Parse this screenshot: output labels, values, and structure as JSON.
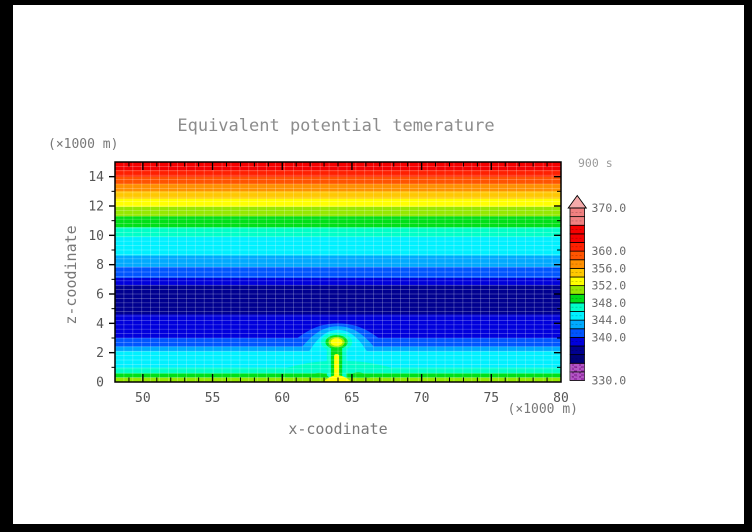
{
  "figure": {
    "title": "Equivalent potential temerature",
    "time_label": "900 s",
    "x_axis": {
      "label": "x-coodinate",
      "unit": "(×1000 m)"
    },
    "z_axis": {
      "label": "z-coodinate",
      "unit": "(×1000 m)"
    }
  },
  "chart_data": {
    "type": "heatmap",
    "subtype": "filled-contour-cross-section",
    "title": "Equivalent potential temerature",
    "time": "900 s",
    "xlabel": "x-coodinate (×1000 m)",
    "ylabel": "z-coodinate (×1000 m)",
    "xlim": [
      48,
      80
    ],
    "ylim": [
      0,
      15
    ],
    "x_major_ticks": [
      50,
      55,
      60,
      65,
      70,
      75,
      80
    ],
    "x_minor_step": 1,
    "z_major_ticks": [
      0,
      2,
      4,
      6,
      8,
      10,
      12,
      14
    ],
    "z_minor_step": 1,
    "grid": {
      "on": true,
      "x_step": 0.64,
      "z_step": 0.3,
      "color": "rgba(255,255,255,0.30)"
    },
    "contour_interval": 2,
    "value_range": [
      330,
      370
    ],
    "colorbar": {
      "position": "right",
      "labels": [
        {
          "value": 370,
          "text": "370.0"
        },
        {
          "value": 360,
          "text": "360.0"
        },
        {
          "value": 356,
          "text": "356.0"
        },
        {
          "value": 352,
          "text": "352.0"
        },
        {
          "value": 348,
          "text": "348.0"
        },
        {
          "value": 344,
          "text": "344.0"
        },
        {
          "value": 340,
          "text": "340.0"
        },
        {
          "value": 330,
          "text": "330.0"
        }
      ],
      "segment_colors_bottom_to_top": [
        "#9933AA",
        "#9933AA",
        "#000078",
        "#000090",
        "#0000DC",
        "#0055FF",
        "#00AAFF",
        "#00F0FF",
        "#00FFC8",
        "#00E018",
        "#96E800",
        "#FFFF00",
        "#FFC800",
        "#FF9000",
        "#FF5400",
        "#FF2000",
        "#F50000",
        "#F50000",
        "#F08080",
        "#F08080"
      ],
      "hatched_segments": [
        0,
        1
      ],
      "overflow_arrow_color": "#F5AAAA"
    },
    "background_layers": [
      {
        "z0": 0.0,
        "z1": 0.3,
        "level": 350,
        "color": "#96E800"
      },
      {
        "z0": 0.3,
        "z1": 0.58,
        "level": 348,
        "color": "#00E018"
      },
      {
        "z0": 0.58,
        "z1": 0.98,
        "level": 346,
        "color": "#00FFC8"
      },
      {
        "z0": 0.98,
        "z1": 2.1,
        "level": 344,
        "color": "#00F0FF"
      },
      {
        "z0": 2.1,
        "z1": 2.42,
        "level": 342,
        "color": "#00AAFF"
      },
      {
        "z0": 2.42,
        "z1": 3.0,
        "level": 340,
        "color": "#0055FF"
      },
      {
        "z0": 3.0,
        "z1": 4.6,
        "level": 338,
        "color": "#0000DC"
      },
      {
        "z0": 4.6,
        "z1": 6.6,
        "level": 336,
        "color": "#000090"
      },
      {
        "z0": 6.6,
        "z1": 7.1,
        "level": 338,
        "color": "#0000DC"
      },
      {
        "z0": 7.1,
        "z1": 7.85,
        "level": 340,
        "color": "#0055FF"
      },
      {
        "z0": 7.85,
        "z1": 8.62,
        "level": 342,
        "color": "#00AAFF"
      },
      {
        "z0": 8.62,
        "z1": 9.9,
        "level": 344,
        "color": "#00F0FF"
      },
      {
        "z0": 9.9,
        "z1": 10.55,
        "level": 346,
        "color": "#00FFC8"
      },
      {
        "z0": 10.55,
        "z1": 11.3,
        "level": 348,
        "color": "#00E018"
      },
      {
        "z0": 11.3,
        "z1": 11.95,
        "level": 350,
        "color": "#96E800"
      },
      {
        "z0": 11.95,
        "z1": 12.5,
        "level": 352,
        "color": "#FFFF00"
      },
      {
        "z0": 12.5,
        "z1": 13.0,
        "level": 354,
        "color": "#FFC800"
      },
      {
        "z0": 13.0,
        "z1": 13.5,
        "level": 356,
        "color": "#FF9000"
      },
      {
        "z0": 13.5,
        "z1": 14.0,
        "level": 358,
        "color": "#FF5400"
      },
      {
        "z0": 14.0,
        "z1": 14.45,
        "level": 360,
        "color": "#FF2000"
      },
      {
        "z0": 14.45,
        "z1": 15.0,
        "level": 362,
        "color": "#F50000"
      }
    ],
    "thermal_bubble": {
      "center_x": 63.9,
      "center_z": 2.72,
      "core_level": 352,
      "shapes": [
        {
          "type": "dome",
          "x0": 60.9,
          "x1": 67.1,
          "zbase": 2.85,
          "zpeak": 4.0,
          "color": "#0055FF"
        },
        {
          "type": "dome",
          "x0": 61.45,
          "x1": 66.55,
          "zbase": 2.42,
          "zpeak": 3.8,
          "color": "#00AAFF"
        },
        {
          "type": "dome",
          "x0": 61.9,
          "x1": 66.1,
          "zbase": 2.05,
          "zpeak": 3.55,
          "color": "#00F0FF"
        },
        {
          "type": "dome",
          "x0": 60.3,
          "x1": 67.9,
          "zbase": 0.95,
          "zpeak": 1.45,
          "color": "#00FFC8"
        },
        {
          "type": "rect",
          "x0": 63.2,
          "x1": 64.6,
          "z0": 0.2,
          "z1": 2.3,
          "color": "#00FFC8"
        },
        {
          "type": "ellipse",
          "cx": 63.9,
          "cz": 2.72,
          "rx": 1.12,
          "rz": 0.64,
          "color": "#00FFC8"
        },
        {
          "type": "ellipse",
          "cx": 63.9,
          "cz": 2.72,
          "rx": 0.8,
          "rz": 0.48,
          "color": "#00E018"
        },
        {
          "type": "rect",
          "x0": 63.5,
          "x1": 64.3,
          "z0": 0.15,
          "z1": 2.35,
          "color": "#00E018"
        },
        {
          "type": "dome",
          "x0": 61.9,
          "x1": 63.4,
          "zbase": 0.28,
          "zpeak": 0.62,
          "color": "#00E018"
        },
        {
          "type": "dome",
          "x0": 64.6,
          "x1": 66.3,
          "zbase": 0.28,
          "zpeak": 0.66,
          "color": "#00E018"
        },
        {
          "type": "ellipse",
          "cx": 63.9,
          "cz": 2.72,
          "rx": 0.58,
          "rz": 0.36,
          "color": "#96E800"
        },
        {
          "type": "ellipse",
          "cx": 63.9,
          "cz": 2.72,
          "rx": 0.42,
          "rz": 0.26,
          "color": "#FFFF00"
        },
        {
          "type": "rect",
          "x0": 63.72,
          "x1": 64.08,
          "z0": 0.1,
          "z1": 1.9,
          "color": "#FFFF00"
        },
        {
          "type": "dome",
          "x0": 63.0,
          "x1": 64.9,
          "zbase": 0.05,
          "zpeak": 0.45,
          "color": "#FFFF00"
        }
      ]
    }
  },
  "colors": {
    "page_border": "#000000",
    "paper": "#ffffff",
    "frame": "#000000",
    "title_text": "#8C8C8C",
    "label_text": "#787878",
    "tick_text": "#555555",
    "colorbar_text": "#6A6A6A",
    "time_text": "#9A9A9A"
  }
}
